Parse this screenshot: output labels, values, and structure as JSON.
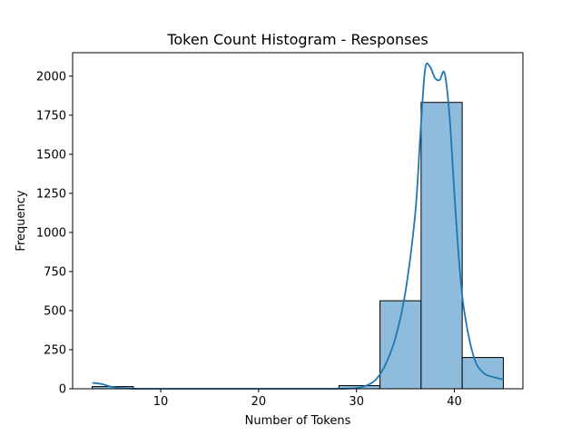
{
  "chart_data": {
    "type": "bar",
    "title": "Token Count Histogram - Responses",
    "xlabel": "Number of Tokens",
    "ylabel": "Frequency",
    "xlim": [
      1,
      47
    ],
    "ylim": [
      0,
      2150
    ],
    "xticks": [
      10,
      20,
      30,
      40
    ],
    "yticks": [
      0,
      250,
      500,
      750,
      1000,
      1250,
      1500,
      1750,
      2000
    ],
    "bins": [
      {
        "x0": 3,
        "x1": 7.2,
        "count": 14
      },
      {
        "x0": 7.2,
        "x1": 11.4,
        "count": 0
      },
      {
        "x0": 11.4,
        "x1": 15.6,
        "count": 0
      },
      {
        "x0": 15.6,
        "x1": 19.8,
        "count": 0
      },
      {
        "x0": 19.8,
        "x1": 24.0,
        "count": 0
      },
      {
        "x0": 24.0,
        "x1": 28.2,
        "count": 0
      },
      {
        "x0": 28.2,
        "x1": 32.4,
        "count": 20
      },
      {
        "x0": 32.4,
        "x1": 36.6,
        "count": 563
      },
      {
        "x0": 36.6,
        "x1": 40.8,
        "count": 1832
      },
      {
        "x0": 40.8,
        "x1": 45.0,
        "count": 200
      }
    ],
    "kde": {
      "x": [
        3,
        4,
        5,
        6,
        7,
        8,
        10,
        15,
        20,
        25,
        28,
        29,
        30,
        31,
        32,
        33,
        34,
        35,
        36,
        36.5,
        37,
        37.5,
        38,
        38.5,
        39,
        39.5,
        40,
        40.5,
        41,
        42,
        43,
        44,
        45
      ],
      "y": [
        38,
        30,
        12,
        4,
        1,
        0,
        0,
        0,
        0,
        0,
        0,
        1,
        5,
        20,
        60,
        160,
        330,
        620,
        1120,
        1600,
        2040,
        2060,
        1990,
        1975,
        2020,
        1750,
        1250,
        800,
        500,
        200,
        100,
        75,
        60
      ]
    },
    "grid": false,
    "colors": {
      "bar_fill": "#8fbcdc",
      "bar_edge": "#000000",
      "kde_line": "#1f77b4"
    }
  }
}
